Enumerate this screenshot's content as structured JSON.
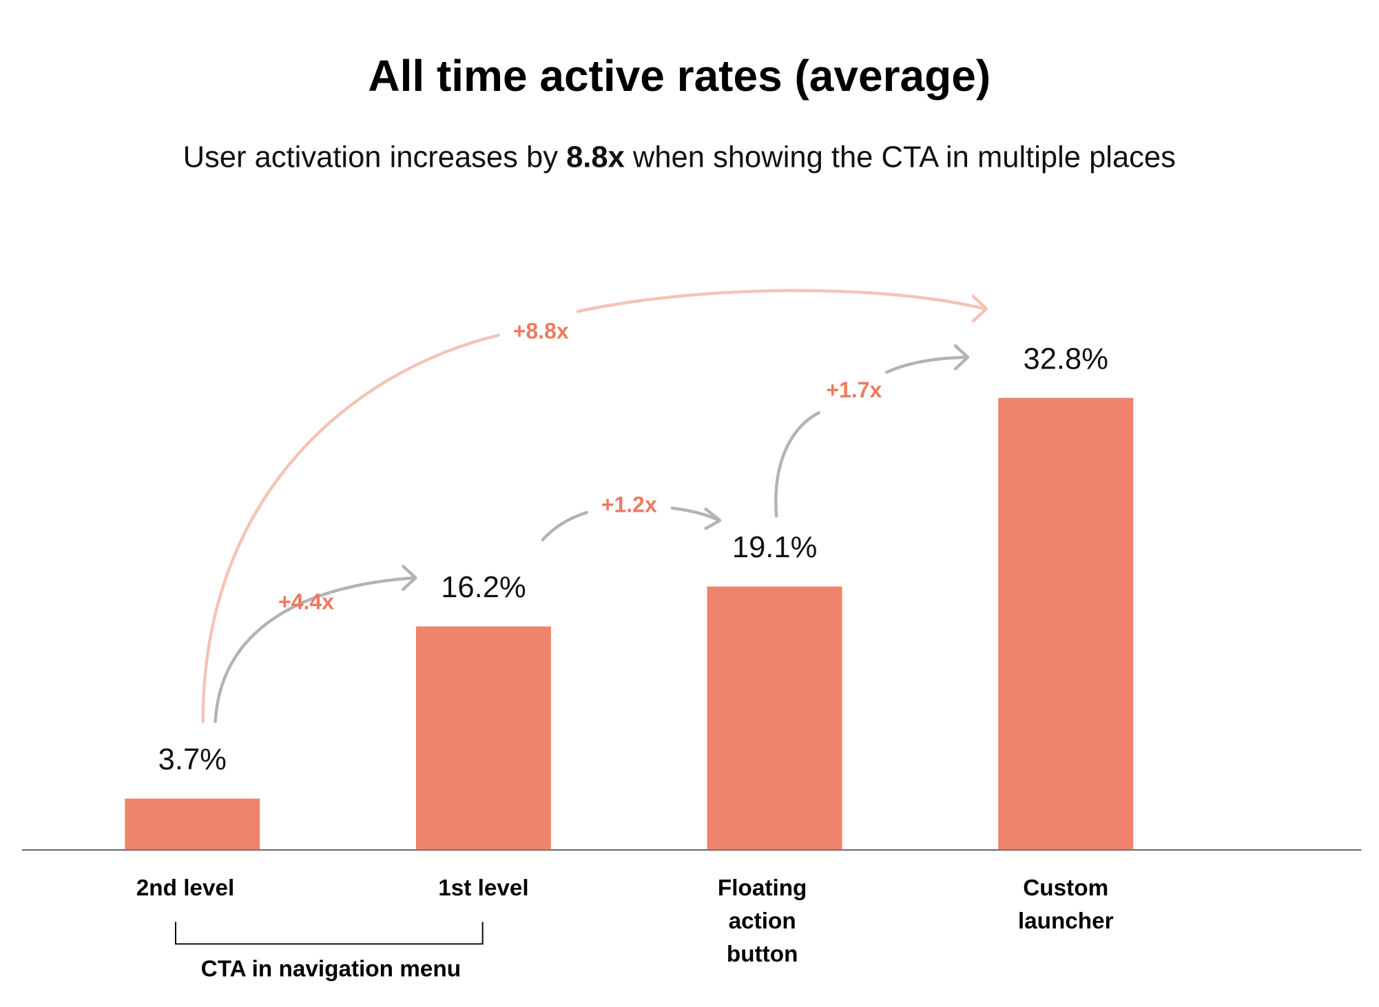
{
  "chart_data": {
    "type": "bar",
    "title": "All time active rates (average)",
    "subtitle": [
      "User activation increases by ",
      "8.8x",
      " when showing the CTA in multiple places"
    ],
    "categories": [
      [
        "2nd level"
      ],
      [
        "1st level"
      ],
      [
        "Floating",
        "action",
        "button"
      ],
      [
        "Custom",
        "launcher"
      ]
    ],
    "values": [
      3.7,
      16.2,
      19.1,
      32.8
    ],
    "value_labels": [
      "3.7%",
      "16.2%",
      "19.1%",
      "32.8%"
    ],
    "color": "#ef836b",
    "ylim": [
      0,
      40
    ],
    "steps": [
      "+4.4x",
      "+1.2x",
      "+1.7x"
    ],
    "overall": "+8.8x",
    "group_label": "CTA in navigation menu"
  }
}
